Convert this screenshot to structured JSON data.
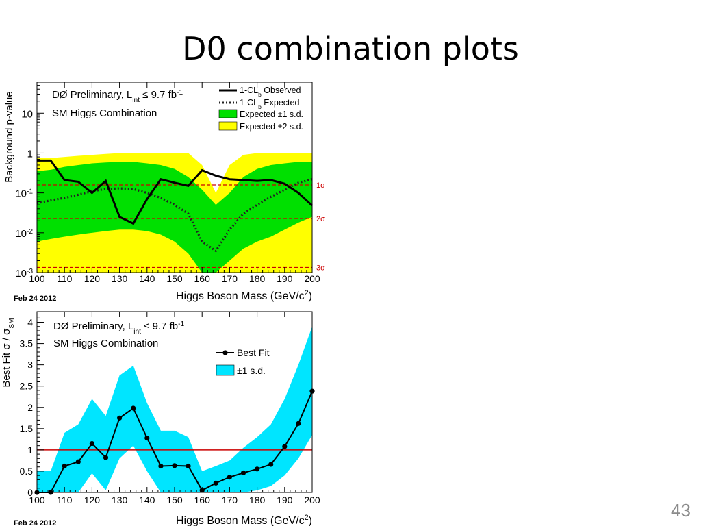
{
  "slide": {
    "title": "D0 combination plots",
    "page_number": "43"
  },
  "chart_data": [
    {
      "type": "line",
      "title": "DØ Preliminary, L",
      "title_sub": "int",
      "title_tail": " ≤ 9.7 fb",
      "title_sup": "-1",
      "subtitle": "SM Higgs Combination",
      "xlabel": "Higgs Boson Mass (GeV/c",
      "xlabel_sup": "2",
      "xlabel_tail": ")",
      "ylabel": "Background p-value",
      "date": "Feb 24 2012",
      "xlim": [
        100,
        200
      ],
      "ylim": [
        0.001,
        60
      ],
      "yscale": "log",
      "xticks": [
        100,
        110,
        120,
        130,
        140,
        150,
        160,
        170,
        180,
        190,
        200
      ],
      "yticks": [
        {
          "v": 0.001,
          "base": "10",
          "exp": "-3"
        },
        {
          "v": 0.01,
          "base": "10",
          "exp": "-2"
        },
        {
          "v": 0.1,
          "base": "10",
          "exp": "-1"
        },
        {
          "v": 1,
          "base": "1",
          "exp": ""
        },
        {
          "v": 10,
          "base": "10",
          "exp": ""
        }
      ],
      "x": [
        100,
        105,
        110,
        115,
        120,
        125,
        130,
        135,
        140,
        145,
        150,
        155,
        160,
        165,
        170,
        175,
        180,
        185,
        190,
        195,
        200
      ],
      "legend_position": "top-right",
      "legend": [
        {
          "text": "1-CL",
          "sub": "b",
          "tail": " Observed",
          "style": "solid"
        },
        {
          "text": "1-CL",
          "sub": "b",
          "tail": " Expected",
          "style": "dotted"
        },
        {
          "text": "Expected ±1 s.d.",
          "style": "band",
          "color": "#00e000"
        },
        {
          "text": "Expected ±2 s.d.",
          "style": "band",
          "color": "#ffff00"
        }
      ],
      "series": [
        {
          "name": "1-CL_b Observed",
          "values": [
            0.65,
            0.65,
            0.21,
            0.19,
            0.1,
            0.2,
            0.025,
            0.017,
            0.07,
            0.22,
            0.18,
            0.15,
            0.37,
            0.27,
            0.22,
            0.21,
            0.2,
            0.21,
            0.17,
            0.1,
            0.048
          ]
        },
        {
          "name": "1-CL_b Expected",
          "values": [
            0.055,
            0.065,
            0.075,
            0.09,
            0.11,
            0.125,
            0.13,
            0.125,
            0.1,
            0.075,
            0.05,
            0.03,
            0.006,
            0.0035,
            0.012,
            0.03,
            0.05,
            0.08,
            0.12,
            0.18,
            0.22
          ]
        }
      ],
      "bands": [
        {
          "name": "Expected ±2 s.d.",
          "color": "#ffff00",
          "lower": [
            0.001,
            0.001,
            0.001,
            0.001,
            0.001,
            0.001,
            0.001,
            0.001,
            0.001,
            0.001,
            0.001,
            0.001,
            0.001,
            0.001,
            0.001,
            0.001,
            0.001,
            0.001,
            0.001,
            0.001,
            0.001
          ],
          "upper": [
            0.75,
            0.75,
            0.8,
            0.85,
            0.9,
            0.95,
            1.0,
            1.0,
            1.0,
            1.0,
            1.0,
            1.0,
            0.5,
            0.1,
            0.5,
            0.9,
            1.0,
            1.0,
            1.0,
            1.0,
            1.0
          ]
        },
        {
          "name": "Expected ±1 s.d.",
          "color": "#00e000",
          "lower": [
            0.006,
            0.007,
            0.008,
            0.009,
            0.01,
            0.011,
            0.012,
            0.012,
            0.011,
            0.009,
            0.006,
            0.003,
            0.001,
            0.001,
            0.002,
            0.004,
            0.006,
            0.008,
            0.012,
            0.018,
            0.025
          ],
          "upper": [
            0.35,
            0.38,
            0.45,
            0.5,
            0.55,
            0.58,
            0.6,
            0.6,
            0.55,
            0.5,
            0.4,
            0.25,
            0.12,
            0.05,
            0.1,
            0.25,
            0.4,
            0.5,
            0.55,
            0.6,
            0.6
          ]
        }
      ],
      "sigma_lines": [
        {
          "label": "1σ",
          "value": 0.1587
        },
        {
          "label": "2σ",
          "value": 0.0228
        },
        {
          "label": "3σ",
          "value": 0.00135
        }
      ],
      "colors": {
        "observed": "#000000",
        "sigma": "#cc0000"
      }
    },
    {
      "type": "line",
      "title": "DØ Preliminary, L",
      "title_sub": "int",
      "title_tail": " ≤ 9.7 fb",
      "title_sup": "-1",
      "subtitle": "SM Higgs Combination",
      "xlabel": "Higgs Boson Mass (GeV/c",
      "xlabel_sup": "2",
      "xlabel_tail": ")",
      "ylabel": "Best Fit σ / σ",
      "ylabel_sub": "SM",
      "date": "Feb 24 2012",
      "xlim": [
        100,
        200
      ],
      "ylim": [
        0,
        4.25
      ],
      "xticks": [
        100,
        110,
        120,
        130,
        140,
        150,
        160,
        170,
        180,
        190,
        200
      ],
      "yticks": [
        0,
        0.5,
        1,
        1.5,
        2,
        2.5,
        3,
        3.5,
        4
      ],
      "ytick_labels": [
        "0",
        "0.5",
        "1",
        "1.5",
        "2",
        "2.5",
        "3",
        "3.5",
        "4"
      ],
      "x": [
        100,
        105,
        110,
        115,
        120,
        125,
        130,
        135,
        140,
        145,
        150,
        155,
        160,
        165,
        170,
        175,
        180,
        185,
        190,
        195,
        200
      ],
      "legend_position": "top-right",
      "legend": [
        {
          "text": "Best Fit",
          "style": "line-marker"
        },
        {
          "text": "±1 s.d.",
          "style": "band",
          "color": "#00e5ff"
        }
      ],
      "series": [
        {
          "name": "Best Fit",
          "values": [
            0,
            0,
            0.62,
            0.72,
            1.15,
            0.82,
            1.75,
            1.98,
            1.28,
            0.62,
            0.63,
            0.62,
            0.05,
            0.22,
            0.36,
            0.46,
            0.55,
            0.66,
            1.08,
            1.62,
            2.38
          ]
        }
      ],
      "bands": [
        {
          "name": "±1 s.d.",
          "color": "#00e5ff",
          "lower": [
            0,
            0,
            0,
            0,
            0.45,
            0.05,
            0.8,
            1.1,
            0.5,
            0,
            0,
            0,
            0,
            0,
            0,
            0,
            0.05,
            0.15,
            0.4,
            0.8,
            1.35
          ],
          "upper": [
            0.5,
            0.5,
            1.4,
            1.6,
            2.2,
            1.8,
            2.75,
            2.98,
            2.1,
            1.45,
            1.45,
            1.3,
            0.5,
            0.62,
            0.75,
            1.05,
            1.3,
            1.6,
            2.2,
            3.0,
            3.9
          ]
        }
      ],
      "reference_line": {
        "value": 1,
        "color": "#cc0000"
      },
      "colors": {
        "best_fit": "#000000"
      }
    }
  ]
}
